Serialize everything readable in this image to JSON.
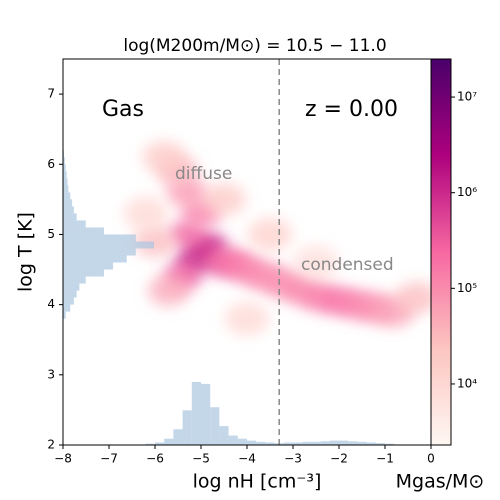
{
  "chart_data": {
    "type": "phase-diagram",
    "title": "log(M200m/M⊙) = 10.5 − 11.0",
    "x_label": "log nH [cm⁻³]",
    "y_label": "log T [K]",
    "colorbar_label": "Mgas/M⊙",
    "annotations": [
      "Gas",
      "z = 0.00",
      "diffuse",
      "condensed"
    ],
    "xlim": [
      -8,
      0
    ],
    "ylim": [
      2,
      7.5
    ],
    "xticks": [
      {
        "value": -8,
        "label": "−8"
      },
      {
        "value": -7,
        "label": "−7"
      },
      {
        "value": -6,
        "label": "−6"
      },
      {
        "value": -5,
        "label": "−5"
      },
      {
        "value": -4,
        "label": "−4"
      },
      {
        "value": -3,
        "label": "−3"
      },
      {
        "value": -2,
        "label": "−2"
      },
      {
        "value": -1,
        "label": "−1"
      },
      0
    ],
    "yticks": [
      2,
      3,
      4,
      5,
      6,
      7
    ],
    "vline": -3.3,
    "log_color_scale": true,
    "clim": [
      2300,
      25000000
    ],
    "cticks": [
      {
        "value": 10000,
        "label": "10⁴"
      },
      {
        "value": 100000,
        "label": "10⁵"
      },
      {
        "value": 1000000,
        "label": "10⁶"
      },
      {
        "value": 10000000,
        "label": "10⁷"
      }
    ],
    "colormap": [
      "#fff7f3",
      "#fcc5c0",
      "#f768a1",
      "#ae017e",
      "#49006a"
    ],
    "density": {
      "x": [
        -5.0,
        -5.2,
        -4.8,
        -5.4,
        -4.6,
        -5.3,
        -5.0,
        -5.3,
        -5.5,
        -5.8,
        -4.3,
        -4.0,
        -3.6,
        -3.2,
        -2.8,
        -2.4,
        -2.0,
        -1.6,
        -1.2,
        -0.8,
        -0.3,
        -6.0,
        -6.2,
        -4.5,
        -3.5,
        -2.5,
        -5.7,
        -4.0
      ],
      "y": [
        4.75,
        4.6,
        4.85,
        4.4,
        4.6,
        5.0,
        5.3,
        5.6,
        5.9,
        6.1,
        4.6,
        4.5,
        4.4,
        4.3,
        4.2,
        4.1,
        4.05,
        4.0,
        3.95,
        3.9,
        4.1,
        4.9,
        5.3,
        5.5,
        5.0,
        4.6,
        4.2,
        3.8
      ],
      "values": [
        2000000,
        1000000,
        800000,
        300000,
        400000,
        300000,
        150000,
        80000,
        40000,
        20000,
        200000,
        150000,
        120000,
        100000,
        120000,
        150000,
        200000,
        150000,
        100000,
        60000,
        30000,
        30000,
        10000,
        20000,
        15000,
        8000,
        50000,
        10000
      ]
    },
    "histogram_color": "#a9c6e0",
    "x_histogram": {
      "bins": [
        -6.2,
        -6.0,
        -5.8,
        -5.6,
        -5.4,
        -5.2,
        -5.0,
        -4.8,
        -4.6,
        -4.4,
        -4.2,
        -4.0,
        -3.8,
        -3.6,
        -3.4,
        -3.2,
        -3.0,
        -2.8,
        -2.6,
        -2.4,
        -2.2,
        -2.0,
        -1.8,
        -1.6,
        -1.4,
        -1.2,
        -1.0,
        -0.8
      ],
      "values": [
        2,
        4,
        10,
        25,
        55,
        100,
        97,
        60,
        30,
        15,
        10,
        7,
        5,
        4,
        3,
        4,
        4,
        5,
        5,
        6,
        7,
        7,
        6,
        5,
        4,
        3,
        2
      ]
    },
    "y_histogram": {
      "bins": [
        3.8,
        3.9,
        4.0,
        4.1,
        4.2,
        4.3,
        4.4,
        4.5,
        4.6,
        4.7,
        4.8,
        4.9,
        5.0,
        5.1,
        5.2,
        5.3,
        5.4,
        5.5,
        5.6,
        5.7,
        5.8,
        5.9,
        6.0,
        6.1,
        6.2
      ],
      "values": [
        3,
        8,
        12,
        15,
        18,
        25,
        45,
        55,
        70,
        80,
        100,
        80,
        45,
        25,
        15,
        12,
        10,
        8,
        6,
        5,
        4,
        3,
        2,
        1
      ]
    }
  }
}
